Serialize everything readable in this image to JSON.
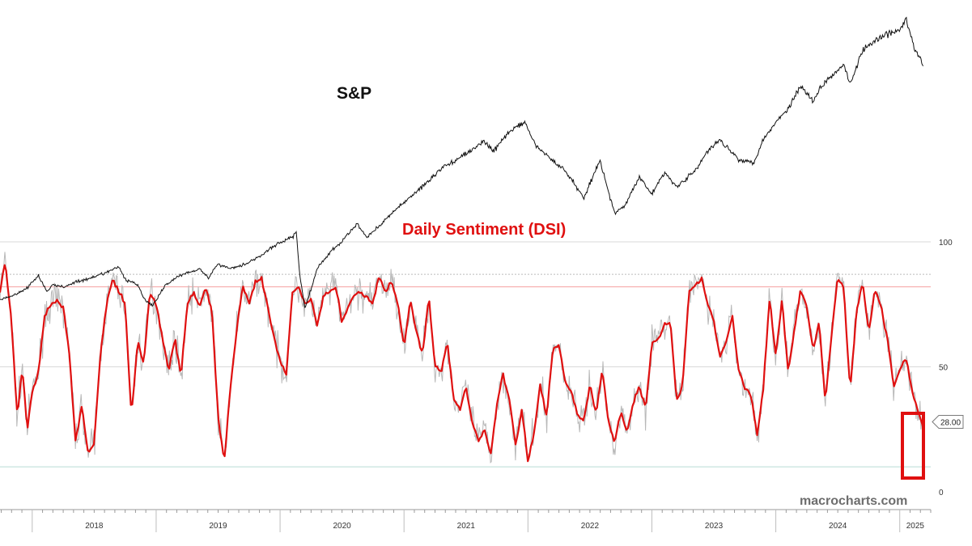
{
  "chart_data": {
    "type": "line",
    "sp_title": "S&P",
    "dsi_title": "Daily Sentiment (DSI)",
    "watermark": "macrocharts.com",
    "colors": {
      "sp": "#111111",
      "dsi_raw": "#b8b8b8",
      "dsi_smooth": "#e01010",
      "upper_band": "#f4a0a0",
      "lower_band": "#b8dcd4",
      "grid": "#d9d9d9",
      "highlight_box": "#e01010"
    },
    "x_axis": {
      "ticks": [
        "2018",
        "2019",
        "2020",
        "2021",
        "2022",
        "2023",
        "2024",
        "2025"
      ],
      "range": [
        2017.74,
        2025.25
      ]
    },
    "dsi_axis": {
      "ticks": [
        "100",
        "50",
        "0"
      ],
      "range": [
        0,
        100
      ],
      "current_label": "28.00",
      "current_value": 28
    },
    "reference_lines": [
      {
        "value": 82,
        "role": "upper-extreme"
      },
      {
        "value": 87,
        "role": "upper-dotted"
      },
      {
        "value": 10,
        "role": "lower-extreme"
      }
    ],
    "sp_series": {
      "name": "S&P",
      "x": [
        2017.74,
        2017.85,
        2017.95,
        2018.05,
        2018.12,
        2018.17,
        2018.25,
        2018.35,
        2018.45,
        2018.55,
        2018.7,
        2018.75,
        2018.85,
        2018.9,
        2018.97,
        2019.08,
        2019.2,
        2019.35,
        2019.42,
        2019.5,
        2019.6,
        2019.72,
        2019.85,
        2019.98,
        2020.1,
        2020.13,
        2020.16,
        2020.2,
        2020.22,
        2020.3,
        2020.4,
        2020.5,
        2020.62,
        2020.7,
        2020.8,
        2020.9,
        2021.0,
        2021.15,
        2021.3,
        2021.45,
        2021.55,
        2021.65,
        2021.72,
        2021.85,
        2021.97,
        2022.05,
        2022.15,
        2022.3,
        2022.37,
        2022.45,
        2022.58,
        2022.7,
        2022.78,
        2022.9,
        2023.0,
        2023.1,
        2023.2,
        2023.35,
        2023.45,
        2023.55,
        2023.7,
        2023.82,
        2023.9,
        2024.0,
        2024.1,
        2024.2,
        2024.3,
        2024.4,
        2024.55,
        2024.6,
        2024.7,
        2024.8,
        2024.9,
        2025.0,
        2025.05,
        2025.12,
        2025.16,
        2025.19
      ],
      "y": [
        2500,
        2560,
        2640,
        2810,
        2600,
        2700,
        2660,
        2730,
        2760,
        2820,
        2920,
        2760,
        2700,
        2520,
        2420,
        2700,
        2820,
        2900,
        2780,
        2960,
        2900,
        2960,
        3070,
        3220,
        3300,
        3380,
        2800,
        2400,
        2480,
        2900,
        3100,
        3250,
        3470,
        3300,
        3450,
        3600,
        3750,
        3950,
        4180,
        4320,
        4420,
        4530,
        4400,
        4650,
        4780,
        4500,
        4350,
        4150,
        4000,
        3800,
        4290,
        3600,
        3700,
        4080,
        3850,
        4130,
        3950,
        4150,
        4400,
        4550,
        4300,
        4250,
        4560,
        4770,
        4950,
        5240,
        5050,
        5300,
        5520,
        5250,
        5700,
        5800,
        5900,
        5950,
        6100,
        5700,
        5600,
        5500
      ]
    },
    "dsi_smooth": {
      "name": "DSI (smoothed)",
      "x": [
        2017.74,
        2017.78,
        2017.83,
        2017.88,
        2017.92,
        2017.96,
        2018.0,
        2018.05,
        2018.1,
        2018.15,
        2018.2,
        2018.25,
        2018.3,
        2018.35,
        2018.4,
        2018.45,
        2018.5,
        2018.55,
        2018.6,
        2018.65,
        2018.7,
        2018.75,
        2018.8,
        2018.85,
        2018.9,
        2018.95,
        2019.0,
        2019.05,
        2019.1,
        2019.15,
        2019.2,
        2019.25,
        2019.3,
        2019.35,
        2019.4,
        2019.45,
        2019.5,
        2019.55,
        2019.6,
        2019.65,
        2019.7,
        2019.75,
        2019.8,
        2019.85,
        2019.9,
        2019.95,
        2020.0,
        2020.05,
        2020.1,
        2020.15,
        2020.2,
        2020.25,
        2020.3,
        2020.35,
        2020.4,
        2020.45,
        2020.5,
        2020.55,
        2020.6,
        2020.65,
        2020.7,
        2020.75,
        2020.8,
        2020.85,
        2020.9,
        2020.95,
        2021.0,
        2021.05,
        2021.1,
        2021.15,
        2021.2,
        2021.25,
        2021.3,
        2021.35,
        2021.4,
        2021.45,
        2021.5,
        2021.55,
        2021.6,
        2021.65,
        2021.7,
        2021.75,
        2021.8,
        2021.85,
        2021.9,
        2021.95,
        2022.0,
        2022.05,
        2022.1,
        2022.15,
        2022.2,
        2022.25,
        2022.3,
        2022.35,
        2022.4,
        2022.45,
        2022.5,
        2022.55,
        2022.6,
        2022.65,
        2022.7,
        2022.75,
        2022.8,
        2022.85,
        2022.9,
        2022.95,
        2023.0,
        2023.05,
        2023.1,
        2023.15,
        2023.2,
        2023.25,
        2023.3,
        2023.35,
        2023.4,
        2023.45,
        2023.5,
        2023.55,
        2023.6,
        2023.65,
        2023.7,
        2023.75,
        2023.8,
        2023.85,
        2023.9,
        2023.95,
        2024.0,
        2024.05,
        2024.1,
        2024.15,
        2024.2,
        2024.25,
        2024.3,
        2024.35,
        2024.4,
        2024.45,
        2024.5,
        2024.55,
        2024.6,
        2024.65,
        2024.7,
        2024.75,
        2024.8,
        2024.85,
        2024.9,
        2024.95,
        2025.0,
        2025.05,
        2025.1,
        2025.15,
        2025.19
      ],
      "y": [
        80,
        92,
        70,
        30,
        50,
        25,
        40,
        48,
        70,
        75,
        76,
        74,
        55,
        20,
        35,
        15,
        20,
        55,
        75,
        85,
        80,
        75,
        30,
        60,
        52,
        80,
        75,
        62,
        48,
        62,
        46,
        75,
        80,
        74,
        82,
        72,
        30,
        12,
        42,
        65,
        82,
        75,
        84,
        85,
        74,
        62,
        52,
        47,
        80,
        82,
        75,
        77,
        66,
        79,
        80,
        82,
        68,
        74,
        79,
        80,
        78,
        75,
        87,
        80,
        84,
        75,
        58,
        77,
        64,
        55,
        78,
        50,
        48,
        60,
        37,
        33,
        42,
        28,
        20,
        25,
        15,
        35,
        47,
        37,
        18,
        33,
        12,
        24,
        43,
        30,
        57,
        59,
        44,
        40,
        31,
        28,
        43,
        31,
        49,
        28,
        20,
        32,
        24,
        36,
        42,
        33,
        60,
        61,
        67,
        68,
        36,
        44,
        80,
        82,
        86,
        75,
        68,
        54,
        60,
        70,
        49,
        41,
        39,
        22,
        42,
        78,
        54,
        77,
        48,
        65,
        81,
        74,
        57,
        68,
        36,
        63,
        86,
        81,
        40,
        72,
        84,
        64,
        81,
        74,
        61,
        42,
        49,
        54,
        40,
        32,
        26
      ]
    }
  }
}
